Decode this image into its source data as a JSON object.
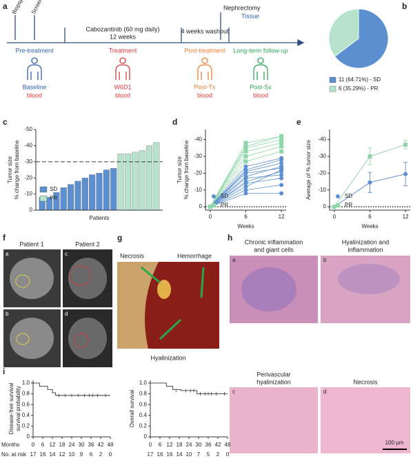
{
  "panel_labels": [
    "a",
    "b",
    "c",
    "d",
    "e",
    "f",
    "g",
    "h",
    "i"
  ],
  "timeline": {
    "events": [
      "Biopsy",
      "Screening",
      "Nephrectomy"
    ],
    "event_note": "Tissue",
    "treatment": [
      "Cabozantinib (60 mg daily)",
      "12 weeks"
    ],
    "washout": "4 weeks washout",
    "phases": [
      "Pre-treatment",
      "Treatment",
      "Post-treatment",
      "Long-term follow-up"
    ],
    "samples": [
      [
        "Baseline",
        "blood"
      ],
      [
        "W6D1",
        "blood"
      ],
      [
        "Post-Tx",
        "blood"
      ],
      [
        "Post-Sx",
        "blood"
      ]
    ]
  },
  "imaging": {
    "columns": [
      "Patient 1",
      "Patient 2"
    ],
    "sublabels": [
      "a",
      "b",
      "c",
      "d"
    ]
  },
  "gross": {
    "labels": [
      "Necrosis",
      "Hemorrhage",
      "Hyalinization"
    ]
  },
  "histology": {
    "captions": [
      [
        "Chronic inflammation",
        "and giant cells"
      ],
      [
        "Hyalinization and",
        "inflammation"
      ],
      [
        "Perivascular",
        "hyalinization"
      ],
      [
        "Necrosis"
      ]
    ],
    "sublabels": [
      "a",
      "b",
      "c",
      "d"
    ],
    "scale_bar": "100 µm"
  },
  "chart_data": [
    {
      "type": "pie",
      "categories": [
        "11 (64.71%) - SD",
        "6 (35.29%) - PR"
      ],
      "values": [
        64.71,
        35.29
      ],
      "colors": [
        "#5b8fd0",
        "#b7e3cc"
      ]
    },
    {
      "type": "bar",
      "ylabel": [
        "Tumor size",
        "% change from baseline"
      ],
      "xlabel": "Patients",
      "series": [
        {
          "name": "SD",
          "color": "#5b8fd0",
          "values": [
            -8,
            -8,
            -11,
            -14,
            -16,
            -18,
            -20,
            -22,
            -23,
            -25,
            -26
          ]
        },
        {
          "name": "PR",
          "color": "#b7e3cc",
          "values": [
            -35,
            -35,
            -36,
            -37,
            -40,
            -42
          ]
        }
      ],
      "ylim": [
        -50,
        0
      ],
      "yticks": [
        0,
        -10,
        -20,
        -30,
        -40,
        -50
      ],
      "reference_line": -30,
      "reference_style": "dashed"
    },
    {
      "type": "spaghetti",
      "ylabel": [
        "Tumor size",
        "% change from baseline"
      ],
      "xlabel": "Weeks",
      "x": [
        0,
        6,
        12
      ],
      "groups": [
        {
          "name": "SD",
          "color": "#5b8fd0",
          "marker": "circle",
          "patients": [
            [
              0,
              -8,
              -8
            ],
            [
              0,
              -10,
              -13
            ],
            [
              0,
              -12,
              -22
            ],
            [
              0,
              -14,
              -17
            ],
            [
              0,
              -15,
              -21
            ],
            [
              0,
              -17,
              -19
            ],
            [
              0,
              -18,
              -24
            ],
            [
              0,
              -20,
              -23
            ],
            [
              0,
              -21,
              -26
            ],
            [
              0,
              -22,
              -28
            ],
            [
              0,
              -24,
              -29
            ]
          ]
        },
        {
          "name": "PR",
          "color": "#8fd6a8",
          "marker": "square",
          "patients": [
            [
              0,
              -27,
              -33
            ],
            [
              0,
              -30,
              -36
            ],
            [
              0,
              -33,
              -38
            ],
            [
              0,
              -35,
              -40
            ],
            [
              0,
              -36,
              -42
            ],
            [
              0,
              -38,
              -42
            ]
          ]
        }
      ],
      "xlim": [
        -0.8,
        12.8
      ],
      "xticks": [
        0,
        6,
        12
      ],
      "ylim": [
        -46,
        2
      ],
      "yticks": [
        0,
        -10,
        -20,
        -30,
        -40
      ],
      "reference_line": 0,
      "reference_style": "dotted"
    },
    {
      "type": "errorline",
      "ylabel": [
        "Average of % tumor size"
      ],
      "xlabel": "Weeks",
      "x": [
        0,
        6,
        12
      ],
      "series": [
        {
          "name": "SD",
          "color": "#5b8fd0",
          "marker": "circle",
          "values": [
            0,
            -14.5,
            -19.5
          ],
          "errors": [
            0,
            6,
            7
          ]
        },
        {
          "name": "PR",
          "color": "#8fd6a8",
          "marker": "square",
          "values": [
            0,
            -30,
            -37
          ],
          "errors": [
            0,
            5,
            2.5
          ]
        }
      ],
      "xlim": [
        -0.8,
        12.8
      ],
      "xticks": [
        0,
        6,
        12
      ],
      "ylim": [
        -46,
        2
      ],
      "yticks": [
        0,
        -10,
        -20,
        -30,
        -40
      ],
      "reference_line": 0,
      "reference_style": "dotted"
    },
    {
      "type": "km",
      "ylabel": [
        "Disease-free survival",
        "survival probability"
      ],
      "xlabel": "Months",
      "at_risk_label": "No. at risk",
      "x": [
        0,
        4,
        9,
        12,
        14,
        48
      ],
      "values": [
        1.0,
        0.94,
        0.88,
        0.82,
        0.77,
        0.77
      ],
      "censored": {
        "x": [
          16,
          20,
          24,
          28,
          32,
          35,
          37,
          40,
          45
        ],
        "values": [
          0.77,
          0.77,
          0.77,
          0.77,
          0.77,
          0.77,
          0.77,
          0.77,
          0.77
        ]
      },
      "xlim": [
        0,
        48
      ],
      "xticks": [
        0,
        6,
        12,
        18,
        24,
        30,
        36,
        42,
        48
      ],
      "ylim": [
        0,
        1.05
      ],
      "yticks": [
        0,
        0.2,
        0.4,
        0.6,
        0.8,
        {
          "value": 1.0,
          "label": "1.0"
        }
      ],
      "at_risk": [
        17,
        16,
        14,
        12,
        10,
        9,
        6,
        2,
        0
      ]
    },
    {
      "type": "km",
      "ylabel": [
        "Overall survival"
      ],
      "x": [
        0,
        10,
        14,
        19,
        29,
        48
      ],
      "values": [
        1.0,
        0.94,
        0.88,
        0.86,
        0.8,
        0.8
      ],
      "censored": {
        "x": [
          16,
          22,
          25,
          27,
          31,
          34,
          36,
          38,
          41,
          46
        ],
        "values": [
          0.86,
          0.86,
          0.86,
          0.86,
          0.8,
          0.8,
          0.8,
          0.8,
          0.8,
          0.8
        ]
      },
      "xlim": [
        0,
        48
      ],
      "xticks": [
        0,
        6,
        12,
        18,
        24,
        30,
        36,
        42,
        48
      ],
      "ylim": [
        0,
        1.05
      ],
      "yticks": [
        0,
        0.2,
        0.4,
        0.6,
        0.8,
        {
          "value": 1.0,
          "label": "1.0"
        }
      ],
      "at_risk": [
        17,
        16,
        16,
        14,
        10,
        7,
        5,
        2,
        0
      ]
    }
  ]
}
